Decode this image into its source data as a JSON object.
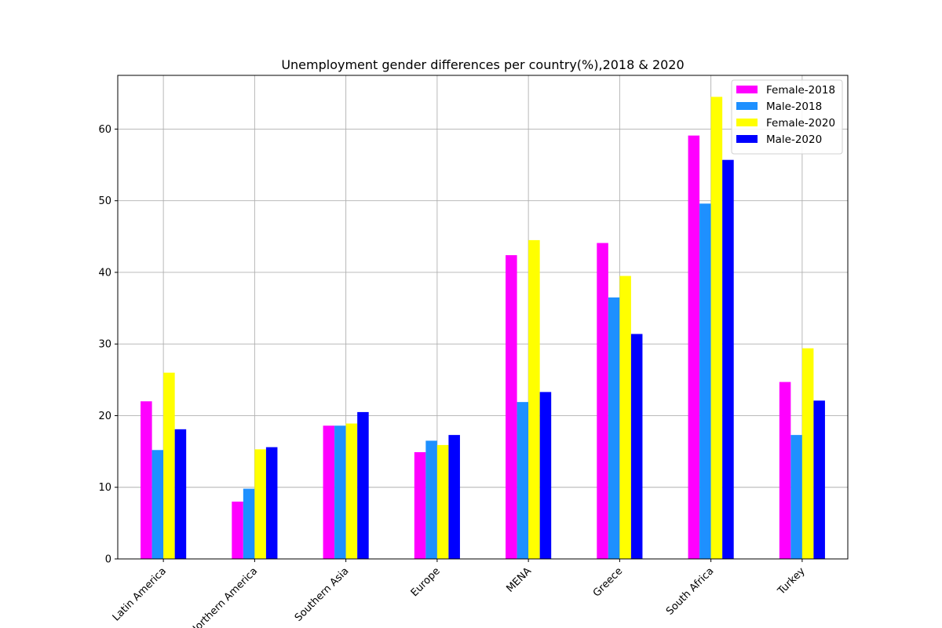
{
  "chart_data": {
    "type": "bar",
    "title": "Unemployment gender differences per country(%),2018 & 2020",
    "xlabel": "",
    "ylabel": "",
    "categories": [
      "Latin America",
      "Northern America",
      "Southern Asia",
      "Europe",
      "MENA",
      "Greece",
      "South Africa",
      "Turkey"
    ],
    "series": [
      {
        "name": "Female-2018",
        "color": "#ff00ff",
        "values": [
          22.0,
          8.0,
          18.6,
          14.9,
          42.4,
          44.1,
          59.1,
          24.7
        ]
      },
      {
        "name": "Male-2018",
        "color": "#1e90ff",
        "values": [
          15.2,
          9.8,
          18.6,
          16.5,
          21.9,
          36.5,
          49.6,
          17.3
        ]
      },
      {
        "name": "Female-2020",
        "color": "#ffff00",
        "values": [
          26.0,
          15.3,
          18.9,
          15.9,
          44.5,
          39.5,
          64.5,
          29.4
        ]
      },
      {
        "name": "Male-2020",
        "color": "#0000ff",
        "values": [
          18.1,
          15.6,
          20.5,
          17.3,
          23.3,
          31.4,
          55.7,
          22.1
        ]
      }
    ],
    "ylim": [
      0,
      67.5
    ],
    "yticks": [
      0,
      10,
      20,
      30,
      40,
      50,
      60
    ],
    "grid": true,
    "legend_position": "top-right"
  }
}
